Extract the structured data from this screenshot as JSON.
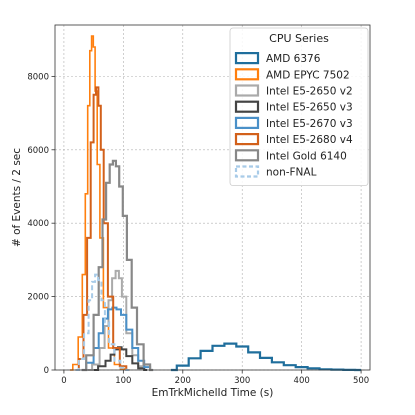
{
  "chart_data": {
    "type": "line",
    "xlabel": "EmTrkMichelId Time (s)",
    "ylabel": "# of Events / 2 sec",
    "xlim": [
      -15,
      515
    ],
    "ylim": [
      0,
      9400
    ],
    "xticks": [
      0,
      100,
      200,
      300,
      400,
      500
    ],
    "yticks": [
      0,
      2000,
      4000,
      6000,
      8000
    ],
    "grid": true,
    "legend": {
      "title": "CPU Series",
      "placement": "top-right"
    },
    "series": [
      {
        "name": "AMD 6376",
        "color": "#1f6e9c",
        "dashed": false,
        "width": 2.2,
        "x": [
          180,
          200,
          220,
          240,
          260,
          280,
          300,
          320,
          340,
          360,
          380,
          400,
          420,
          440,
          460,
          480,
          500
        ],
        "y": [
          0,
          120,
          320,
          520,
          660,
          720,
          640,
          480,
          330,
          210,
          130,
          80,
          45,
          20,
          10,
          4,
          0
        ]
      },
      {
        "name": "AMD EPYC 7502",
        "color": "#ff7f0e",
        "dashed": false,
        "width": 1.6,
        "x": [
          10,
          20,
          28,
          34,
          38,
          42,
          45,
          48,
          51,
          54,
          58,
          63,
          70,
          80,
          90,
          100,
          110
        ],
        "y": [
          0,
          150,
          900,
          2600,
          4800,
          7200,
          8700,
          9100,
          8800,
          7600,
          5600,
          3600,
          1700,
          600,
          150,
          30,
          0
        ]
      },
      {
        "name": "Intel E5-2650 v2",
        "color": "#aaaaaa",
        "dashed": false,
        "width": 2,
        "x": [
          40,
          55,
          65,
          72,
          78,
          84,
          90,
          95,
          100,
          110,
          120,
          130,
          140
        ],
        "y": [
          0,
          150,
          600,
          1200,
          1900,
          2500,
          2700,
          2500,
          2000,
          1000,
          400,
          100,
          0
        ]
      },
      {
        "name": "Intel E5-2650 v3",
        "color": "#444444",
        "dashed": false,
        "width": 2,
        "x": [
          50,
          65,
          75,
          82,
          88,
          94,
          100,
          110,
          120,
          130,
          140
        ],
        "y": [
          0,
          100,
          250,
          420,
          560,
          620,
          560,
          380,
          180,
          50,
          0
        ]
      },
      {
        "name": "Intel E5-2670 v3",
        "color": "#4a90c8",
        "dashed": false,
        "width": 2,
        "x": [
          30,
          45,
          55,
          62,
          70,
          78,
          85,
          92,
          100,
          110,
          120,
          130,
          140,
          150
        ],
        "y": [
          0,
          200,
          600,
          1000,
          1400,
          1650,
          1700,
          1650,
          1500,
          1100,
          600,
          250,
          80,
          0
        ]
      },
      {
        "name": "Intel E5-2680 v4",
        "color": "#d2601a",
        "dashed": false,
        "width": 2,
        "x": [
          20,
          30,
          36,
          42,
          48,
          52,
          56,
          60,
          64,
          70,
          78,
          88,
          100,
          110
        ],
        "y": [
          0,
          300,
          1500,
          3600,
          6200,
          7500,
          7700,
          7200,
          6000,
          4000,
          2000,
          600,
          100,
          0
        ]
      },
      {
        "name": "Intel Gold 6140",
        "color": "#888888",
        "dashed": false,
        "width": 2.2,
        "x": [
          30,
          45,
          55,
          62,
          68,
          74,
          80,
          85,
          90,
          96,
          102,
          110,
          118,
          128,
          140,
          150
        ],
        "y": [
          0,
          400,
          1500,
          2800,
          4100,
          5100,
          5600,
          5700,
          5550,
          5000,
          4200,
          3000,
          1700,
          700,
          150,
          0
        ]
      },
      {
        "name": "non-FNAL",
        "color": "#a8cbe8",
        "dashed": true,
        "width": 2,
        "x": [
          20,
          30,
          38,
          45,
          50,
          55,
          60,
          66,
          72,
          80,
          90,
          100,
          110
        ],
        "y": [
          0,
          300,
          1000,
          1900,
          2400,
          2600,
          2450,
          1900,
          1300,
          700,
          250,
          60,
          0
        ]
      }
    ]
  }
}
